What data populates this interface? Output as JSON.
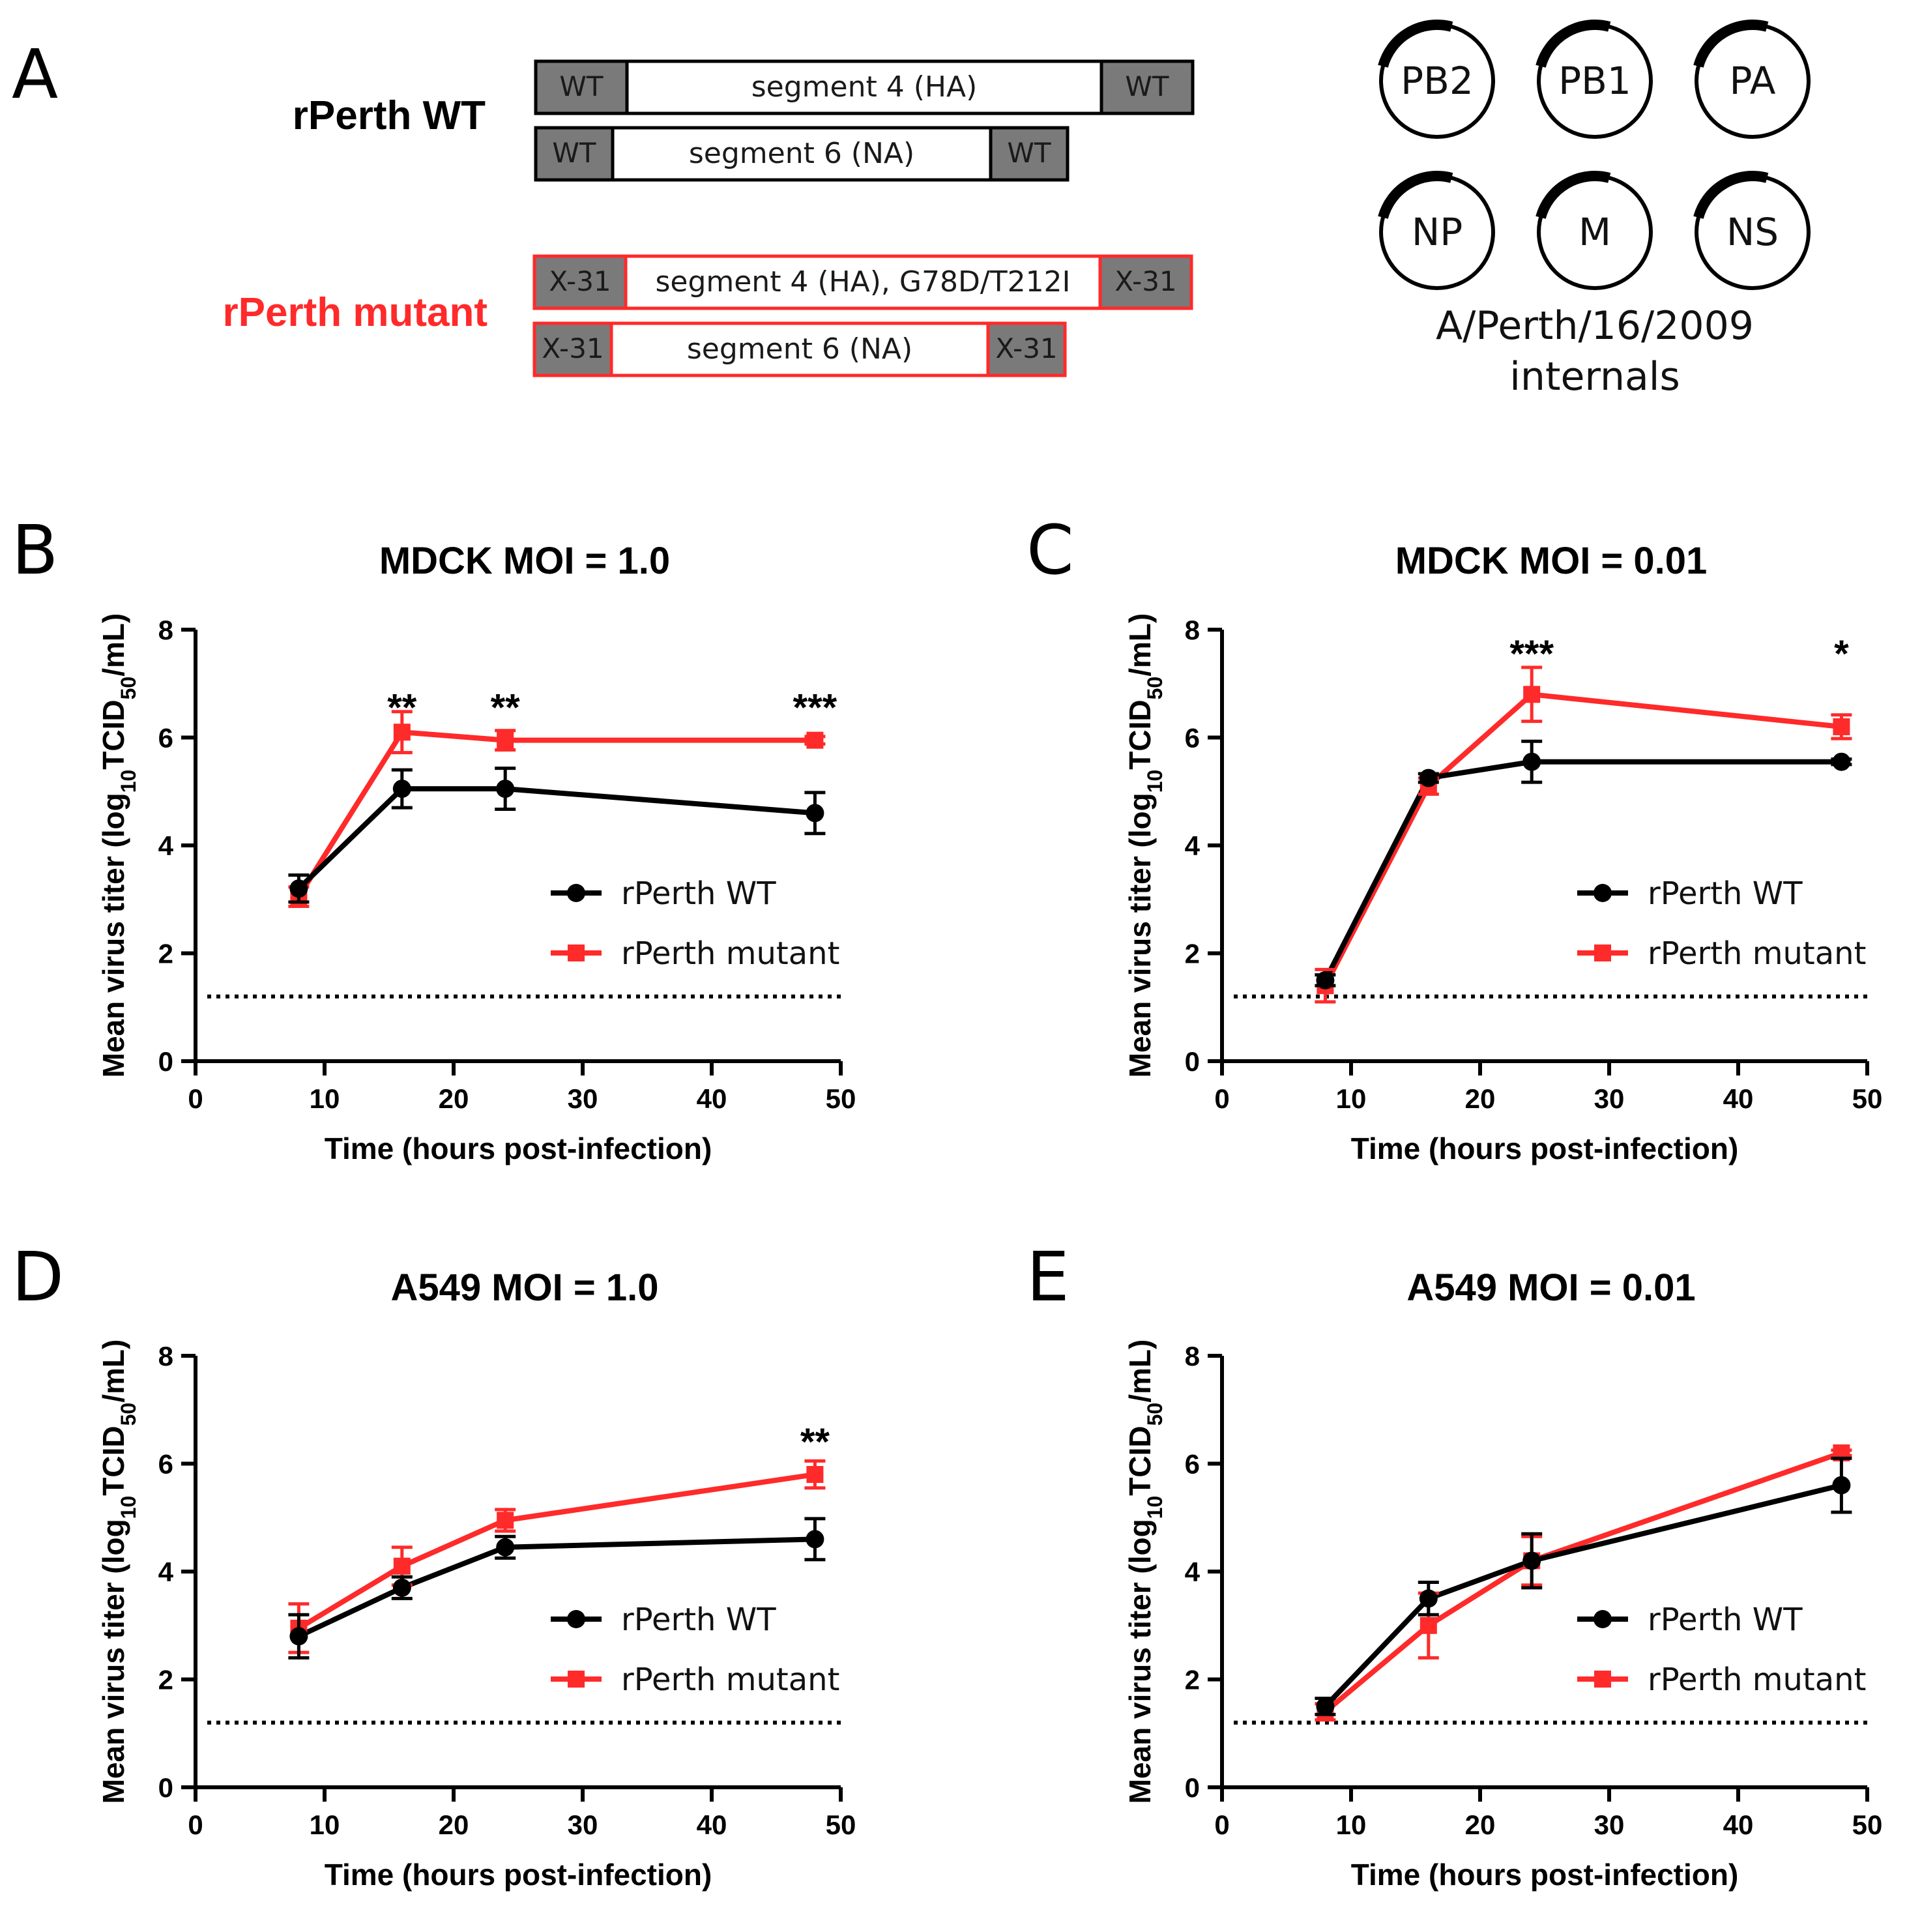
{
  "figure": {
    "panel_a": {
      "letter": "A",
      "wt_construct": {
        "title": "rPerth WT",
        "color": "#000000",
        "ha": {
          "left": "WT",
          "middle": "segment 4 (HA)",
          "right": "WT"
        },
        "na": {
          "left": "WT",
          "middle": "segment 6 (NA)",
          "right": "WT"
        }
      },
      "mutant_construct": {
        "title": "rPerth mutant",
        "color": "#ff2a2a",
        "ha": {
          "left": "X-31",
          "middle": "segment 4 (HA), G78D/T212I",
          "right": "X-31"
        },
        "na": {
          "left": "X-31",
          "middle": "segment 6 (NA)",
          "right": "X-31"
        }
      },
      "internal_segments": [
        "PB2",
        "PB1",
        "PA",
        "NP",
        "M",
        "NS"
      ],
      "internals_caption_line1": "A/Perth/16/2009",
      "internals_caption_line2": "internals",
      "cap_color": "#7a7a7a"
    }
  },
  "chart_data": [
    {
      "type": "line",
      "panel": "B",
      "title": "MDCK MOI = 1.0",
      "xlabel": "Time (hours post-infection)",
      "ylabel_parts": [
        "Mean virus titer (log",
        "10",
        "TCID",
        "50",
        "/mL)"
      ],
      "xlim": [
        0,
        50
      ],
      "ylim": [
        0,
        8
      ],
      "xticks": [
        0,
        10,
        20,
        30,
        40,
        50
      ],
      "yticks": [
        0,
        2,
        4,
        6,
        8
      ],
      "detection_limit": 1.2,
      "legend_position": "center-right",
      "series": [
        {
          "name": "rPerth WT",
          "color": "#000000",
          "marker": "circle",
          "x": [
            8,
            16,
            24,
            48
          ],
          "y": [
            3.2,
            5.05,
            5.05,
            4.6
          ],
          "err": [
            0.25,
            0.35,
            0.38,
            0.38
          ]
        },
        {
          "name": "rPerth mutant",
          "color": "#ff2a2a",
          "marker": "square",
          "x": [
            8,
            16,
            24,
            48
          ],
          "y": [
            3.05,
            6.1,
            5.95,
            5.95
          ],
          "err": [
            0.18,
            0.38,
            0.18,
            0.07
          ]
        }
      ],
      "annotations": [
        {
          "x": 16,
          "y": 6.65,
          "text": "**"
        },
        {
          "x": 24,
          "y": 6.65,
          "text": "**"
        },
        {
          "x": 48,
          "y": 6.65,
          "text": "***"
        }
      ]
    },
    {
      "type": "line",
      "panel": "C",
      "title": "MDCK MOI = 0.01",
      "xlabel": "Time (hours post-infection)",
      "ylabel_parts": [
        "Mean virus titer (log",
        "10",
        "TCID",
        "50",
        "/mL)"
      ],
      "xlim": [
        0,
        50
      ],
      "ylim": [
        0,
        8
      ],
      "xticks": [
        0,
        10,
        20,
        30,
        40,
        50
      ],
      "yticks": [
        0,
        2,
        4,
        6,
        8
      ],
      "detection_limit": 1.2,
      "legend_position": "center-right",
      "series": [
        {
          "name": "rPerth WT",
          "color": "#000000",
          "marker": "circle",
          "x": [
            8,
            16,
            24,
            48
          ],
          "y": [
            1.5,
            5.25,
            5.55,
            5.55
          ],
          "err": [
            0.1,
            0.08,
            0.38,
            0.05
          ]
        },
        {
          "name": "rPerth mutant",
          "color": "#ff2a2a",
          "marker": "square",
          "x": [
            8,
            16,
            24,
            48
          ],
          "y": [
            1.4,
            5.1,
            6.8,
            6.2
          ],
          "err": [
            0.3,
            0.15,
            0.5,
            0.22
          ]
        }
      ],
      "annotations": [
        {
          "x": 24,
          "y": 7.65,
          "text": "***"
        },
        {
          "x": 48,
          "y": 7.65,
          "text": "*"
        }
      ]
    },
    {
      "type": "line",
      "panel": "D",
      "title": "A549 MOI = 1.0",
      "xlabel": "Time (hours post-infection)",
      "ylabel_parts": [
        "Mean virus titer (log",
        "10",
        "TCID",
        "50",
        "/mL)"
      ],
      "xlim": [
        0,
        50
      ],
      "ylim": [
        0,
        8
      ],
      "xticks": [
        0,
        10,
        20,
        30,
        40,
        50
      ],
      "yticks": [
        0,
        2,
        4,
        6,
        8
      ],
      "detection_limit": 1.2,
      "legend_position": "center-right",
      "series": [
        {
          "name": "rPerth WT",
          "color": "#000000",
          "marker": "circle",
          "x": [
            8,
            16,
            24,
            48
          ],
          "y": [
            2.8,
            3.7,
            4.45,
            4.6
          ],
          "err": [
            0.4,
            0.2,
            0.2,
            0.38
          ]
        },
        {
          "name": "rPerth mutant",
          "color": "#ff2a2a",
          "marker": "square",
          "x": [
            8,
            16,
            24,
            48
          ],
          "y": [
            2.95,
            4.1,
            4.95,
            5.8
          ],
          "err": [
            0.45,
            0.35,
            0.2,
            0.25
          ]
        }
      ],
      "annotations": [
        {
          "x": 48,
          "y": 6.5,
          "text": "**"
        }
      ]
    },
    {
      "type": "line",
      "panel": "E",
      "title": "A549 MOI = 0.01",
      "xlabel": "Time (hours post-infection)",
      "ylabel_parts": [
        "Mean virus titer (log",
        "10",
        "TCID",
        "50",
        "/mL)"
      ],
      "xlim": [
        0,
        50
      ],
      "ylim": [
        0,
        8
      ],
      "xticks": [
        0,
        10,
        20,
        30,
        40,
        50
      ],
      "yticks": [
        0,
        2,
        4,
        6,
        8
      ],
      "detection_limit": 1.2,
      "legend_position": "center-right",
      "series": [
        {
          "name": "rPerth WT",
          "color": "#000000",
          "marker": "circle",
          "x": [
            8,
            16,
            24,
            48
          ],
          "y": [
            1.5,
            3.5,
            4.2,
            5.6
          ],
          "err": [
            0.15,
            0.3,
            0.5,
            0.5
          ]
        },
        {
          "name": "rPerth mutant",
          "color": "#ff2a2a",
          "marker": "square",
          "x": [
            8,
            16,
            24,
            48
          ],
          "y": [
            1.4,
            3.0,
            4.2,
            6.2
          ],
          "err": [
            0.15,
            0.6,
            0.45,
            0.05
          ]
        }
      ],
      "annotations": []
    }
  ]
}
